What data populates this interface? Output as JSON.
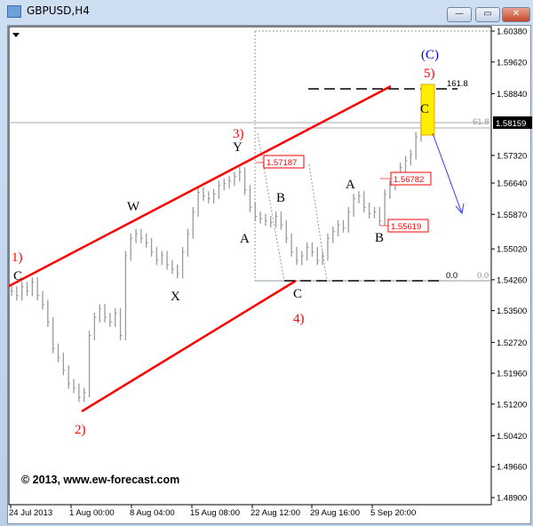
{
  "window": {
    "title": "GBPUSD,H4",
    "buttons": {
      "minimize": "—",
      "maximize": "▭",
      "close": "✕"
    }
  },
  "copyright": "© 2013, www.ew-forecast.com",
  "chart_data": {
    "type": "bar",
    "symbol": "GBPUSD",
    "timeframe": "H4",
    "ylim": [
      1.489,
      1.6038
    ],
    "y_ticks": [
      "1.60380",
      "1.59620",
      "1.58840",
      "1.57320",
      "1.56640",
      "1.55870",
      "1.55020",
      "1.54260",
      "1.53500",
      "1.52720",
      "1.51960",
      "1.51200",
      "1.50420",
      "1.49660",
      "1.48900"
    ],
    "current_price": "1.58159",
    "x_ticks": [
      "24 Jul 2013",
      "1 Aug 00:00",
      "8 Aug 04:00",
      "15 Aug 08:00",
      "22 Aug 12:00",
      "29 Aug 16:00",
      "5 Sep 20:00"
    ],
    "close": [
      1.5398,
      1.5387,
      1.5409,
      1.5398,
      1.542,
      1.5387,
      1.5365,
      1.5322,
      1.5257,
      1.5235,
      1.5203,
      1.517,
      1.5159,
      1.5137,
      1.5148,
      1.5289,
      1.5333,
      1.5354,
      1.5333,
      1.5322,
      1.5344,
      1.5289,
      1.5485,
      1.5528,
      1.5539,
      1.5528,
      1.5517,
      1.5495,
      1.5474,
      1.5485,
      1.5463,
      1.5452,
      1.5441,
      1.5495,
      1.5539,
      1.5593,
      1.5641,
      1.5632,
      1.5626,
      1.5637,
      1.5658,
      1.5663,
      1.5669,
      1.568,
      1.5691,
      1.5647,
      1.5604,
      1.5582,
      1.5576,
      1.5571,
      1.5567,
      1.5582,
      1.5561,
      1.5528,
      1.5495,
      1.5474,
      1.5485,
      1.5506,
      1.5495,
      1.5474,
      1.5485,
      1.5528,
      1.5545,
      1.5561,
      1.5554,
      1.5593,
      1.5626,
      1.5632,
      1.5604,
      1.5589,
      1.5593,
      1.5571,
      1.5637,
      1.5658,
      1.568,
      1.5702,
      1.5719,
      1.5734,
      1.5778,
      1.5821
    ],
    "price_labels": [
      "1.57187",
      "1.56782",
      "1.55619"
    ],
    "fib_labels": {
      "ext": "161.8",
      "retr": "61.8",
      "zero": "0.0",
      "zero_right": "0.0"
    },
    "wave_labels": {
      "w1": "1)",
      "c_start": "C",
      "w2": "2)",
      "W": "W",
      "X": "X",
      "w3": "3)",
      "Y": "Y",
      "A1": "A",
      "B1": "B",
      "C1": "C",
      "w4": "4)",
      "A2": "A",
      "B2": "B",
      "C2": "C",
      "w5": "5)",
      "bigC": "(C)"
    },
    "colors": {
      "bars": "#9a9a9a",
      "channel": "#ff0000",
      "wave_red": "#ff0000",
      "wave_blue": "#0000ff",
      "target_box": "#ffee00",
      "arrow": "#3a3aff"
    }
  }
}
